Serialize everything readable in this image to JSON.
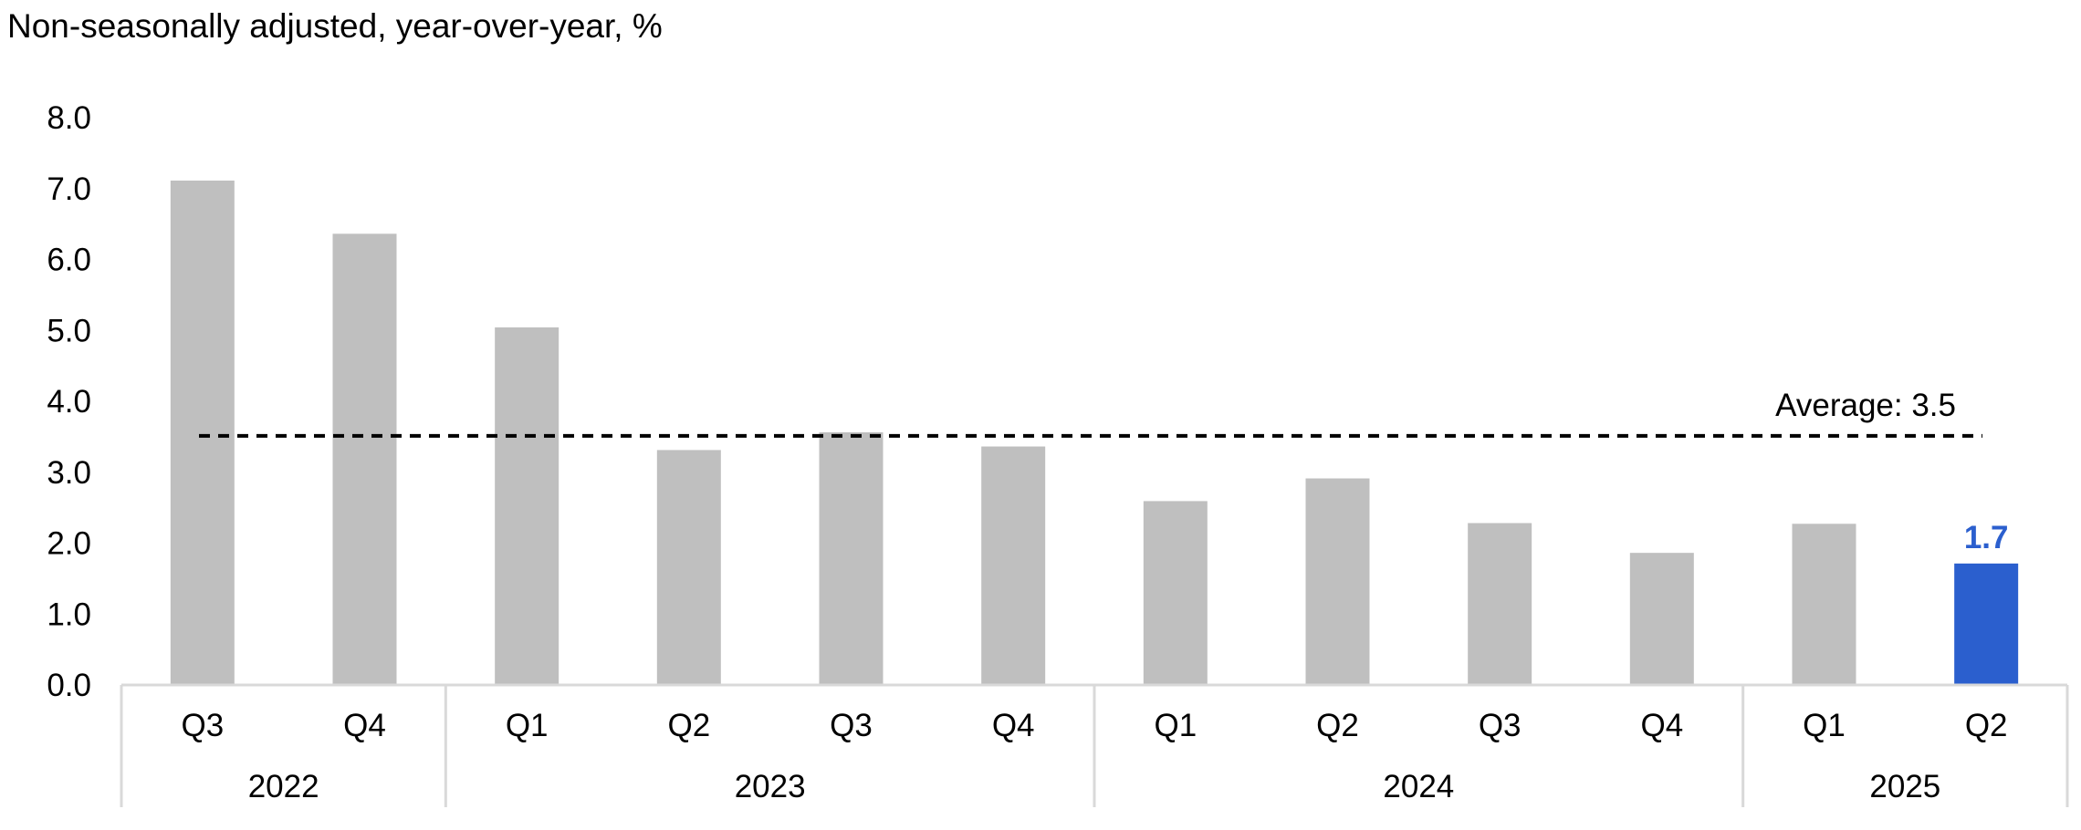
{
  "chart_data": {
    "type": "bar",
    "title": "Non-seasonally adjusted, year-over-year, %",
    "categories": [
      "Q3",
      "Q4",
      "Q1",
      "Q2",
      "Q3",
      "Q4",
      "Q1",
      "Q2",
      "Q3",
      "Q4",
      "Q1",
      "Q2"
    ],
    "years": [
      {
        "label": "2022",
        "span": 2
      },
      {
        "label": "2023",
        "span": 4
      },
      {
        "label": "2024",
        "span": 4
      },
      {
        "label": "2025",
        "span": 2
      }
    ],
    "values": [
      7.1,
      6.35,
      5.03,
      3.3,
      3.55,
      3.35,
      2.58,
      2.9,
      2.27,
      1.85,
      2.26,
      1.7
    ],
    "highlight_index": 11,
    "highlight_label": "1.7",
    "ylim": [
      0,
      8
    ],
    "yticks": [
      "0.0",
      "1.0",
      "2.0",
      "3.0",
      "4.0",
      "5.0",
      "6.0",
      "7.0",
      "8.0"
    ],
    "average": {
      "value": 3.5,
      "label": "Average:  3.5"
    },
    "grid": false,
    "legend": "none"
  },
  "colors": {
    "bar": "#bfbfbf",
    "highlight": "#2b5fce",
    "highlight_text": "#2b5fce",
    "axis": "#d9d9d9",
    "average_line": "#000000"
  }
}
